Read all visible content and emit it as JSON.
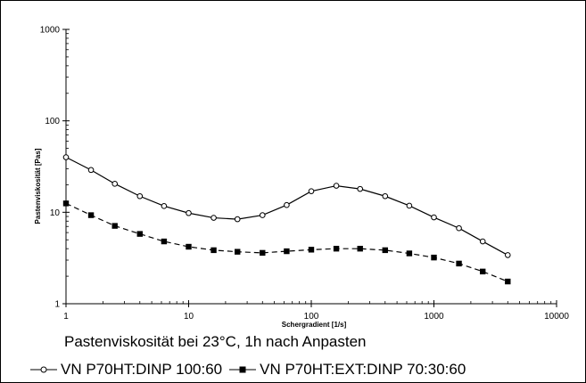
{
  "chart_data": {
    "type": "line",
    "title": "",
    "xlabel": "Schergradient [1/s]",
    "ylabel": "Pastenviskosität [Pas]",
    "x_scale": "log",
    "y_scale": "log",
    "xlim": [
      1,
      10000
    ],
    "ylim": [
      1,
      1000
    ],
    "x_ticks": [
      1,
      10,
      100,
      1000,
      10000
    ],
    "y_ticks": [
      1,
      10,
      100,
      1000
    ],
    "x_tick_labels": [
      "1",
      "10",
      "100",
      "1000",
      "10000"
    ],
    "y_tick_labels": [
      "1",
      "10",
      "100",
      "1000"
    ],
    "grid": false,
    "legend_position": "bottom",
    "series": [
      {
        "name": "VN P70HT:DINP 100:60",
        "marker": "open-circle",
        "line_style": "solid",
        "color": "#000000",
        "x": [
          1,
          1.6,
          2.5,
          4,
          6.3,
          10,
          16,
          25,
          40,
          63,
          100,
          160,
          250,
          400,
          630,
          1000,
          1600,
          2500,
          4000
        ],
        "y": [
          40,
          29,
          20.5,
          15,
          11.7,
          9.8,
          8.7,
          8.4,
          9.3,
          12,
          17,
          19.5,
          18,
          15,
          11.8,
          8.8,
          6.7,
          4.8,
          3.4
        ]
      },
      {
        "name": "VN P70HT:EXT:DINP  70:30:60",
        "marker": "filled-square",
        "line_style": "dashed",
        "color": "#000000",
        "x": [
          1,
          1.6,
          2.5,
          4,
          6.3,
          10,
          16,
          25,
          40,
          63,
          100,
          160,
          250,
          400,
          630,
          1000,
          1600,
          2500,
          4000
        ],
        "y": [
          12.5,
          9.3,
          7.1,
          5.8,
          4.8,
          4.2,
          3.85,
          3.7,
          3.6,
          3.75,
          3.9,
          4.0,
          4.0,
          3.85,
          3.55,
          3.2,
          2.75,
          2.25,
          1.75
        ]
      }
    ]
  },
  "note": "Pastenviskosität bei 23°C, 1h nach Anpasten"
}
